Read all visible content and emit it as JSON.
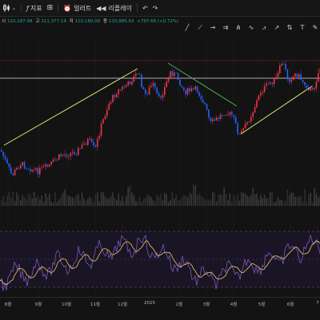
{
  "toolbar": {
    "indicators_label": "지표",
    "alerts_label": "얼러트",
    "replay_label": "리플레이",
    "fx_icon": "fx-icon",
    "undo_icon": "undo-icon",
    "redo_icon": "redo-icon"
  },
  "ohlc": {
    "open_label": "시",
    "open": "110,187.98",
    "high_label": "고",
    "high": "111,377.19",
    "low_label": "저",
    "low": "110,180.00",
    "close_label": "종",
    "close": "110,985.63",
    "change": "+797.66 (+0.72%)",
    "up_color": "#26a69a",
    "down_color": "#ef5350"
  },
  "drawing_tools": [
    "line-tool-icon",
    "ray-tool-icon",
    "horizontal-line-icon",
    "channel-icon",
    "pitchfork-icon",
    "pattern-icon",
    "wave-icon",
    "arrow-icon",
    "text-tool-icon"
  ],
  "xaxis": {
    "labels": [
      "8월",
      "9월",
      "10월",
      "11월",
      "12월",
      "2025",
      "2월",
      "3월",
      "4월",
      "5월",
      "6월",
      "7"
    ]
  },
  "colors": {
    "up": "#f23645",
    "down": "#2962ff",
    "trendline_yellow": "#e8e56b",
    "trendline_green": "#4caf50",
    "rsi": "#7e57c2",
    "rsi_ma": "#e0d060"
  }
}
